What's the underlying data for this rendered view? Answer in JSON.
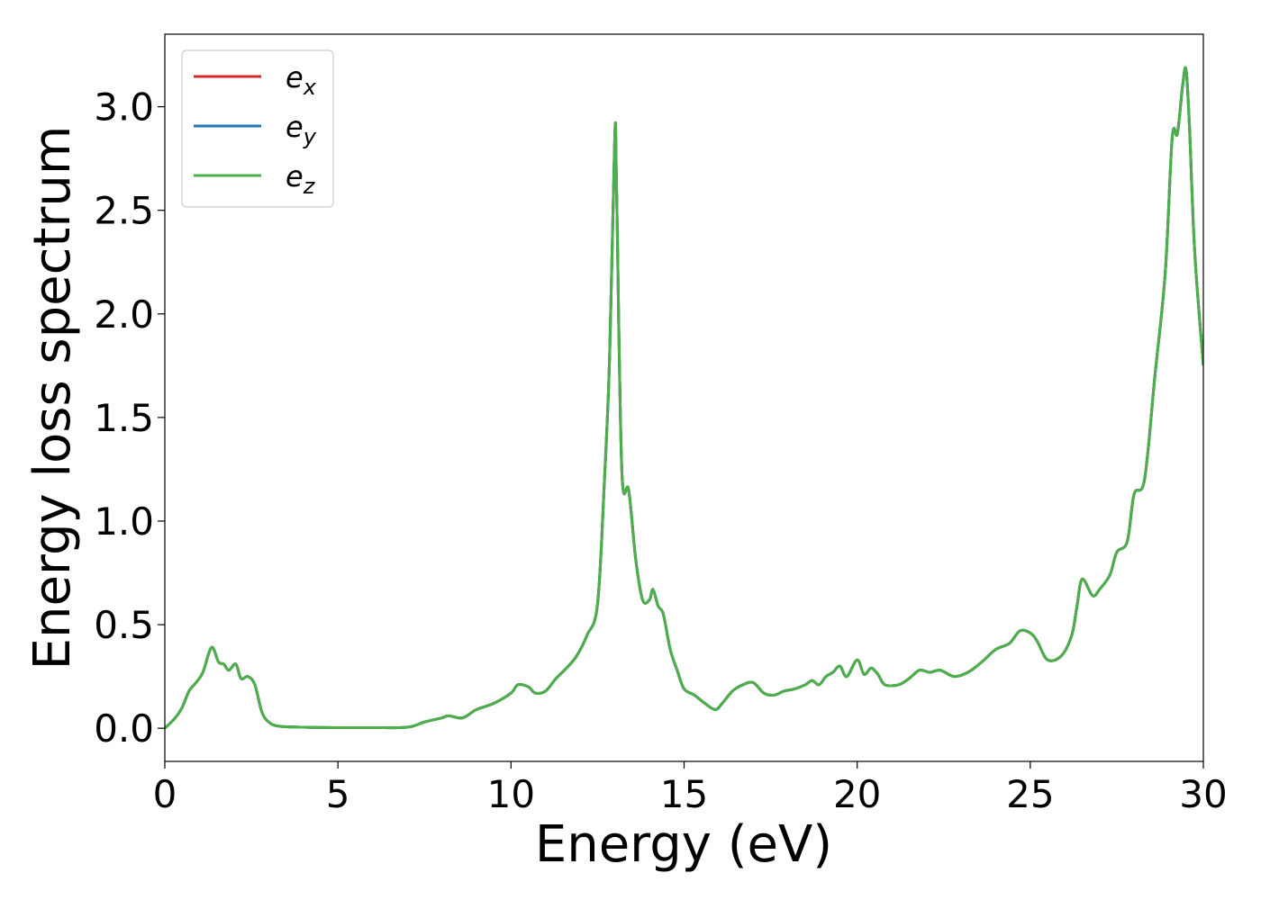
{
  "chart_data": {
    "type": "line",
    "title": "",
    "xlabel": "Energy (eV)",
    "ylabel": "Energy loss spectrum",
    "xlim": [
      0,
      30
    ],
    "ylim": [
      -0.16,
      3.35
    ],
    "xticks": [
      0,
      5,
      10,
      15,
      20,
      25,
      30
    ],
    "xtick_labels": [
      "0",
      "5",
      "10",
      "15",
      "20",
      "25",
      "30"
    ],
    "yticks": [
      0.0,
      0.5,
      1.0,
      1.5,
      2.0,
      2.5,
      3.0
    ],
    "ytick_labels": [
      "0.0",
      "0.5",
      "1.0",
      "1.5",
      "2.0",
      "2.5",
      "3.0"
    ],
    "grid": false,
    "legend_position": "top-left",
    "x": [
      0,
      0.3,
      0.5,
      0.7,
      0.9,
      1.1,
      1.35,
      1.55,
      1.7,
      1.85,
      2.05,
      2.2,
      2.4,
      2.6,
      2.8,
      3.0,
      3.3,
      4,
      5,
      6,
      7,
      7.5,
      8,
      8.2,
      8.6,
      9,
      9.5,
      10,
      10.2,
      10.5,
      10.7,
      11,
      11.3,
      11.6,
      11.9,
      12.2,
      12.5,
      12.7,
      12.85,
      13.0,
      13.05,
      13.2,
      13.4,
      13.6,
      13.8,
      14.0,
      14.1,
      14.25,
      14.4,
      14.6,
      14.8,
      15.0,
      15.3,
      15.6,
      15.9,
      16.1,
      16.4,
      16.7,
      17.0,
      17.3,
      17.6,
      17.9,
      18.2,
      18.5,
      18.7,
      18.9,
      19.1,
      19.3,
      19.5,
      19.7,
      20.0,
      20.2,
      20.4,
      20.6,
      20.8,
      21.2,
      21.5,
      21.8,
      22.1,
      22.4,
      22.8,
      23.2,
      23.6,
      24.0,
      24.4,
      24.7,
      25.0,
      25.2,
      25.5,
      25.9,
      26.2,
      26.35,
      26.5,
      26.8,
      27.0,
      27.3,
      27.5,
      27.8,
      28.0,
      28.3,
      28.6,
      28.9,
      29.1,
      29.25,
      29.4,
      29.5,
      29.6,
      29.75,
      30.0
    ],
    "series": [
      {
        "name": "e_x",
        "color": "#d62728",
        "values": [
          0.0,
          0.05,
          0.1,
          0.18,
          0.22,
          0.27,
          0.39,
          0.32,
          0.31,
          0.28,
          0.31,
          0.24,
          0.25,
          0.21,
          0.08,
          0.03,
          0.01,
          0.005,
          0.003,
          0.003,
          0.005,
          0.03,
          0.05,
          0.06,
          0.05,
          0.09,
          0.12,
          0.17,
          0.21,
          0.2,
          0.17,
          0.18,
          0.24,
          0.29,
          0.35,
          0.45,
          0.6,
          1.2,
          1.8,
          2.87,
          2.6,
          1.25,
          1.15,
          0.82,
          0.62,
          0.62,
          0.67,
          0.59,
          0.55,
          0.38,
          0.28,
          0.19,
          0.16,
          0.12,
          0.09,
          0.12,
          0.18,
          0.21,
          0.22,
          0.17,
          0.16,
          0.18,
          0.19,
          0.21,
          0.23,
          0.21,
          0.25,
          0.27,
          0.3,
          0.25,
          0.33,
          0.26,
          0.29,
          0.26,
          0.21,
          0.21,
          0.24,
          0.28,
          0.27,
          0.28,
          0.25,
          0.27,
          0.32,
          0.38,
          0.41,
          0.47,
          0.46,
          0.42,
          0.33,
          0.35,
          0.45,
          0.59,
          0.72,
          0.64,
          0.67,
          0.74,
          0.85,
          0.9,
          1.13,
          1.2,
          1.7,
          2.2,
          2.85,
          2.87,
          3.1,
          3.18,
          2.9,
          2.3,
          1.75
        ]
      },
      {
        "name": "e_y",
        "color": "#1f77b4",
        "values": [
          0.0,
          0.05,
          0.1,
          0.18,
          0.22,
          0.27,
          0.39,
          0.32,
          0.31,
          0.28,
          0.31,
          0.24,
          0.25,
          0.21,
          0.08,
          0.03,
          0.01,
          0.005,
          0.003,
          0.003,
          0.005,
          0.03,
          0.05,
          0.06,
          0.05,
          0.09,
          0.12,
          0.17,
          0.21,
          0.2,
          0.17,
          0.18,
          0.24,
          0.29,
          0.35,
          0.45,
          0.6,
          1.2,
          1.8,
          2.87,
          2.6,
          1.25,
          1.15,
          0.82,
          0.62,
          0.62,
          0.67,
          0.59,
          0.55,
          0.38,
          0.28,
          0.19,
          0.16,
          0.12,
          0.09,
          0.12,
          0.18,
          0.21,
          0.22,
          0.17,
          0.16,
          0.18,
          0.19,
          0.21,
          0.23,
          0.21,
          0.25,
          0.27,
          0.3,
          0.25,
          0.33,
          0.26,
          0.29,
          0.26,
          0.21,
          0.21,
          0.24,
          0.28,
          0.27,
          0.28,
          0.25,
          0.27,
          0.32,
          0.38,
          0.41,
          0.47,
          0.46,
          0.42,
          0.33,
          0.35,
          0.45,
          0.59,
          0.72,
          0.64,
          0.67,
          0.74,
          0.85,
          0.9,
          1.13,
          1.2,
          1.7,
          2.2,
          2.85,
          2.87,
          3.1,
          3.18,
          2.9,
          2.3,
          1.75
        ]
      },
      {
        "name": "e_z",
        "color": "#4daf4a",
        "values": [
          0.0,
          0.05,
          0.1,
          0.18,
          0.22,
          0.27,
          0.39,
          0.32,
          0.31,
          0.28,
          0.31,
          0.24,
          0.25,
          0.21,
          0.08,
          0.03,
          0.01,
          0.005,
          0.003,
          0.003,
          0.005,
          0.03,
          0.05,
          0.06,
          0.05,
          0.09,
          0.12,
          0.17,
          0.21,
          0.2,
          0.17,
          0.18,
          0.24,
          0.29,
          0.35,
          0.45,
          0.6,
          1.2,
          1.8,
          2.87,
          2.6,
          1.25,
          1.15,
          0.82,
          0.62,
          0.62,
          0.67,
          0.59,
          0.55,
          0.38,
          0.28,
          0.19,
          0.16,
          0.12,
          0.09,
          0.12,
          0.18,
          0.21,
          0.22,
          0.17,
          0.16,
          0.18,
          0.19,
          0.21,
          0.23,
          0.21,
          0.25,
          0.27,
          0.3,
          0.25,
          0.33,
          0.26,
          0.29,
          0.26,
          0.21,
          0.21,
          0.24,
          0.28,
          0.27,
          0.28,
          0.25,
          0.27,
          0.32,
          0.38,
          0.41,
          0.47,
          0.46,
          0.42,
          0.33,
          0.35,
          0.45,
          0.59,
          0.72,
          0.64,
          0.67,
          0.74,
          0.85,
          0.9,
          1.13,
          1.2,
          1.7,
          2.2,
          2.85,
          2.87,
          3.1,
          3.18,
          2.9,
          2.3,
          1.75
        ]
      }
    ],
    "legend": [
      {
        "base": "e",
        "sub": "x",
        "color": "#d62728"
      },
      {
        "base": "e",
        "sub": "y",
        "color": "#1f77b4"
      },
      {
        "base": "e",
        "sub": "z",
        "color": "#4daf4a"
      }
    ]
  }
}
